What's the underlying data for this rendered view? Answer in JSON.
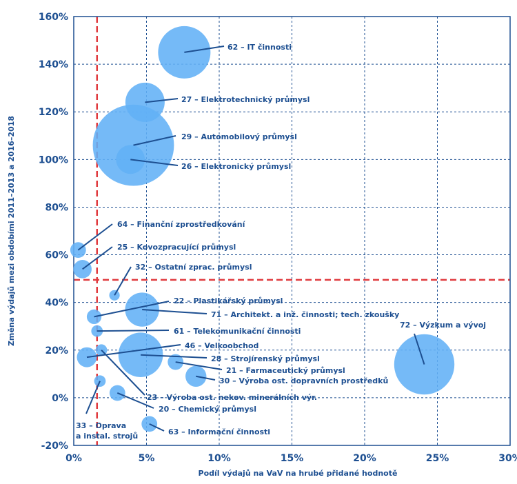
{
  "chart_data": {
    "type": "scatter",
    "xlabel": "Podíl výdajů na VaV na hrubé přidané hodnotě",
    "ylabel": "Změna výdajů mezi obdobími 2011–2013 a 2016–2018",
    "xlim": [
      0,
      30
    ],
    "ylim": [
      -20,
      160
    ],
    "x_ticks": [
      "0%",
      "5%",
      "10%",
      "15%",
      "20%",
      "25%",
      "30%"
    ],
    "y_ticks": [
      "-20%",
      "0%",
      "20%",
      "40%",
      "60%",
      "80%",
      "100%",
      "120%",
      "140%",
      "160%"
    ],
    "grid": true,
    "reference_lines": {
      "x": 1.6,
      "y": 49.5,
      "color": "#e03a3e"
    },
    "bubble_color": "#62b1f6",
    "text_color": "#1d4f91",
    "points": [
      {
        "label": "62 – IT činnosti",
        "x": 7.6,
        "y": 145,
        "size": 1.0
      },
      {
        "label": "27 – Elektrotechnický průmysl",
        "x": 4.9,
        "y": 124,
        "size": 0.75
      },
      {
        "label": "29 – Automobilový průmysl",
        "x": 4.1,
        "y": 106,
        "size": 1.55
      },
      {
        "label": "26 – Elektronický průmysl",
        "x": 3.9,
        "y": 100,
        "size": 0.55
      },
      {
        "label": "64 – Finanční zprostředkování",
        "x": 0.3,
        "y": 62,
        "size": 0.3
      },
      {
        "label": "25 – Kovozpracující průmysl",
        "x": 0.6,
        "y": 54,
        "size": 0.35
      },
      {
        "label": "32 – Ostatní zprac. průmysl",
        "x": 2.8,
        "y": 43,
        "size": 0.2
      },
      {
        "label": "22 – Plastikářský průmysl",
        "x": 1.4,
        "y": 34,
        "size": 0.28
      },
      {
        "label": "71 – Architekt. a inž. činnosti; tech. zkoušky",
        "x": 4.7,
        "y": 37,
        "size": 0.65
      },
      {
        "label": "61 – Telekomunikační činnosti",
        "x": 1.6,
        "y": 28,
        "size": 0.22
      },
      {
        "label": "46 – Velkoobchod",
        "x": 0.9,
        "y": 17,
        "size": 0.38
      },
      {
        "label": "28 – Strojírenský průmysl",
        "x": 4.6,
        "y": 18,
        "size": 0.85
      },
      {
        "label": "21 – Farmaceutický průmysl",
        "x": 7.0,
        "y": 15,
        "size": 0.3
      },
      {
        "label": "30 – Výroba ost. dopravních prostředků",
        "x": 8.4,
        "y": 9,
        "size": 0.4
      },
      {
        "label": "23 – Výroba ost. nekov. minerálních výr.",
        "x": 1.9,
        "y": 20,
        "size": 0.22
      },
      {
        "label": "20 – Chemický průmysl",
        "x": 3.0,
        "y": 2,
        "size": 0.3
      },
      {
        "label": "33 – Oprava a instal. strojů",
        "x": 1.8,
        "y": 7,
        "size": 0.22
      },
      {
        "label": "63 – Informační činnosti",
        "x": 5.2,
        "y": -11,
        "size": 0.3
      },
      {
        "label": "72 – Výzkum a vývoj",
        "x": 24.1,
        "y": 14,
        "size": 1.15
      }
    ]
  }
}
